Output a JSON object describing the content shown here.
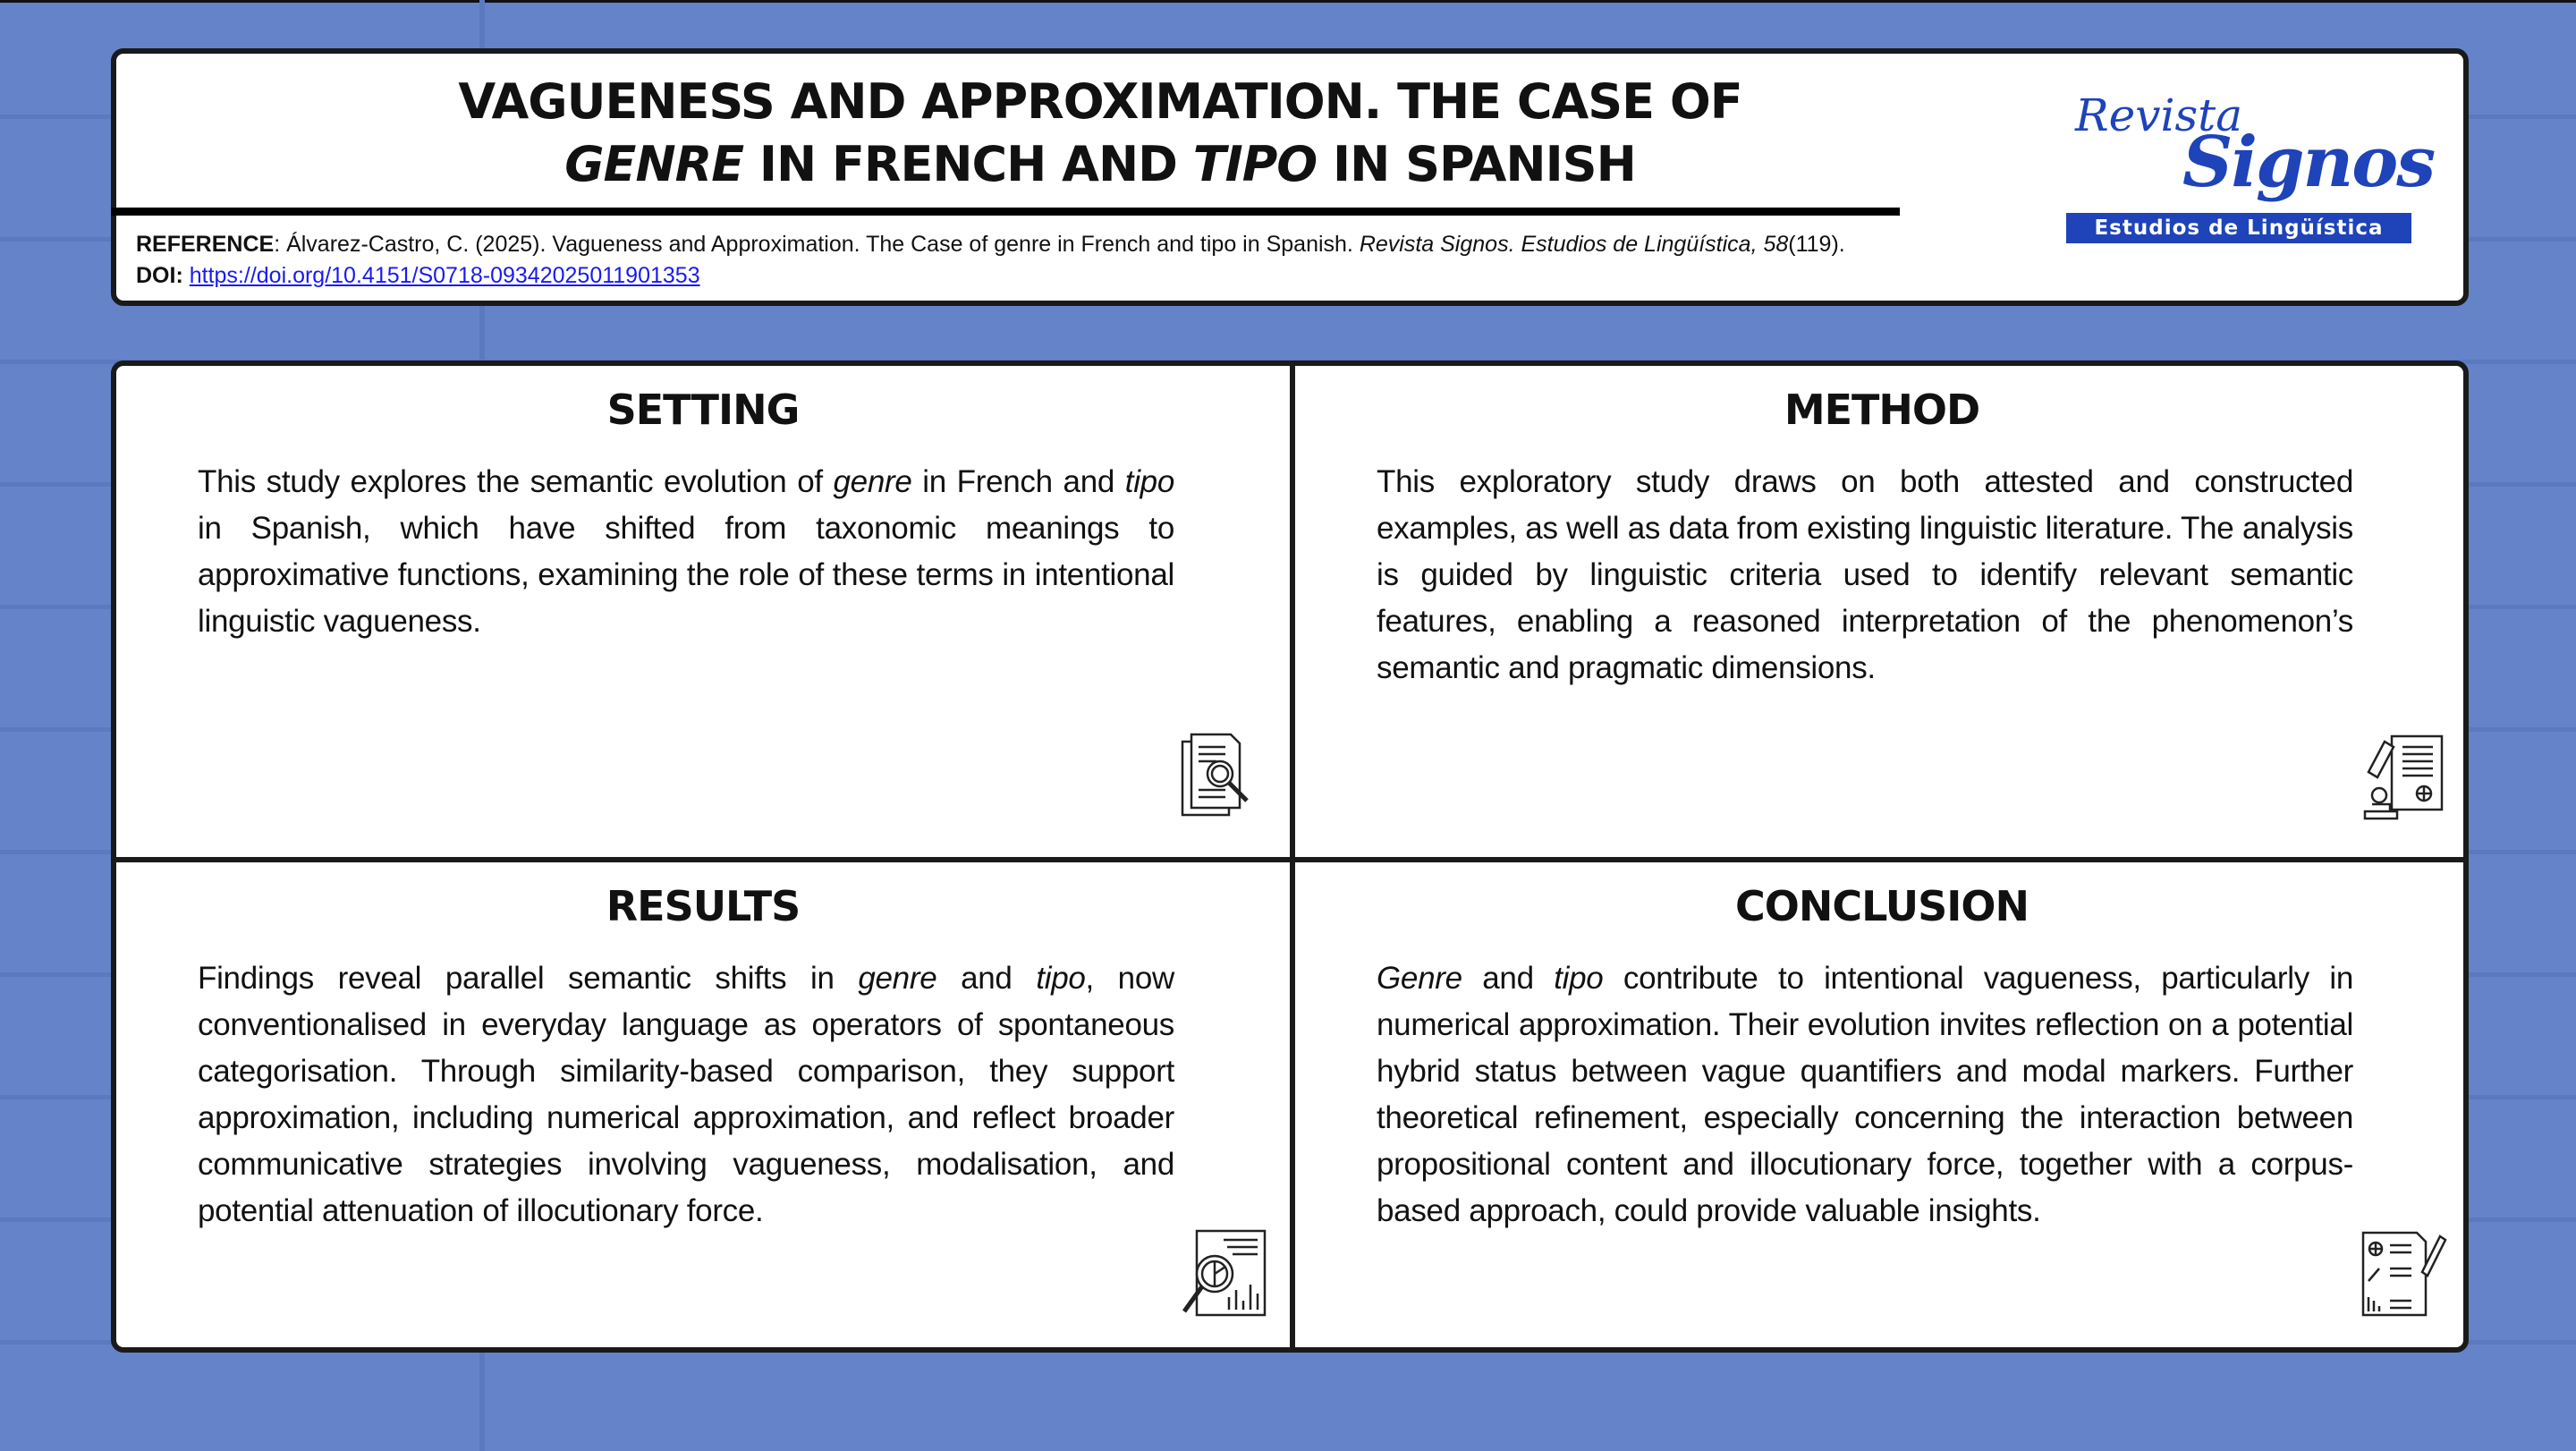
{
  "header": {
    "title_line1": "VAGUENESS AND APPROXIMATION. THE CASE OF",
    "title_line2": [
      {
        "text": "GENRE",
        "italic": true
      },
      {
        "text": " IN FRENCH AND ",
        "italic": false
      },
      {
        "text": "TIPO",
        "italic": true
      },
      {
        "text": " IN SPANISH",
        "italic": false
      }
    ],
    "reference_label": "REFERENCE",
    "reference_text": ": Álvarez-Castro, C. (2025). Vagueness and Approximation. The Case of genre in French and tipo in Spanish. ",
    "reference_journal": "Revista Signos. Estudios de Lingüística, 58",
    "reference_issue": "(119).",
    "doi_label": "DOI:",
    "doi_link": "https://doi.org/10.4151/S0718-09342025011901353"
  },
  "logo": {
    "line1": "Revista",
    "line2": "Signos",
    "band": "Estudios de Lingüística",
    "color": "#1f43b8"
  },
  "panels": [
    {
      "title": "SETTING",
      "icon": "document-search-icon",
      "body": [
        {
          "text": "This study explores the semantic evolution of ",
          "italic": false
        },
        {
          "text": "genre",
          "italic": true
        },
        {
          "text": " in French and ",
          "italic": false
        },
        {
          "text": "tipo",
          "italic": true
        },
        {
          "text": " in Spanish, which have shifted from taxonomic meanings to approximative functions, examining the role of these terms in intentional linguistic vagueness.",
          "italic": false
        }
      ]
    },
    {
      "title": "METHOD",
      "icon": "microscope-document-icon",
      "body": [
        {
          "text": "This exploratory study draws on both attested and constructed examples, as well as data from existing linguistic literature. The analysis is guided by linguistic criteria used to identify relevant semantic features, enabling a reasoned interpretation of the phenomenon’s semantic and pragmatic dimensions.",
          "italic": false
        }
      ]
    },
    {
      "title": "RESULTS",
      "icon": "chart-analysis-icon",
      "body": [
        {
          "text": "Findings reveal parallel semantic shifts in ",
          "italic": false
        },
        {
          "text": "genre",
          "italic": true
        },
        {
          "text": " and ",
          "italic": false
        },
        {
          "text": "tipo",
          "italic": true
        },
        {
          "text": ", now conventionalised in everyday language as operators of spontaneous categorisation. Through similarity-based comparison, they support approximation, including numerical approximation, and reflect broader communicative strategies involving vagueness, modalisation, and potential attenuation of illocutionary force.",
          "italic": false
        }
      ]
    },
    {
      "title": "CONCLUSION",
      "icon": "report-pencil-icon",
      "body": [
        {
          "text": "Genre",
          "italic": true
        },
        {
          "text": " and ",
          "italic": false
        },
        {
          "text": "tipo",
          "italic": true
        },
        {
          "text": " contribute to intentional vagueness, particularly in numerical approximation. Their evolution invites reflection on a potential hybrid status between vague quantifiers and modal markers. Further theoretical refinement, especially concerning the interaction between propositional content and illocutionary force, together with a corpus-based approach, could provide valuable insights.",
          "italic": false
        }
      ]
    }
  ]
}
